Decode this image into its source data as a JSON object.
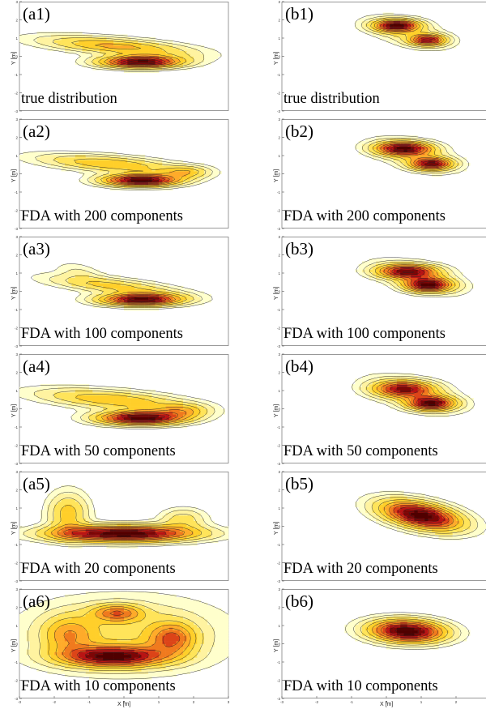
{
  "figure": {
    "ylabel": "Y [m]",
    "xlabel": "X [m]",
    "colormap": [
      "#ffffcc",
      "#fff3a0",
      "#ffe45a",
      "#ffcf2a",
      "#ffab2a",
      "#f07a1e",
      "#dc4418",
      "#b81414",
      "#7d0606",
      "#500000"
    ]
  },
  "chart_data": [
    {
      "type": "heatmap",
      "label": "(a1)",
      "caption": "true distribution",
      "xlim": [
        -3,
        3
      ],
      "ylim": [
        -3,
        3
      ],
      "blobs": [
        {
          "x": -0.2,
          "y": 0.55,
          "sx": 1.5,
          "sy": 0.3,
          "w": 0.45,
          "r": -0.15
        },
        {
          "x": 0.5,
          "y": -0.3,
          "sx": 0.8,
          "sy": 0.22,
          "w": 1.0,
          "r": 0.0
        }
      ]
    },
    {
      "type": "heatmap",
      "label": "(b1)",
      "caption": "true distribution",
      "xlim": [
        -3,
        3
      ],
      "ylim": [
        -3,
        3
      ],
      "blobs": [
        {
          "x": 0.3,
          "y": 1.7,
          "sx": 0.45,
          "sy": 0.22,
          "w": 1.0,
          "r": 0.0
        },
        {
          "x": 1.2,
          "y": 0.9,
          "sx": 0.35,
          "sy": 0.2,
          "w": 0.85,
          "r": 0.0
        },
        {
          "x": 0.6,
          "y": 1.3,
          "sx": 0.9,
          "sy": 0.45,
          "w": 0.25,
          "r": -0.5
        }
      ]
    },
    {
      "type": "heatmap",
      "label": "(a2)",
      "caption": "FDA with 200 components",
      "xlim": [
        -3,
        3
      ],
      "ylim": [
        -3,
        3
      ],
      "blobs": [
        {
          "x": -0.4,
          "y": 0.55,
          "sx": 1.4,
          "sy": 0.3,
          "w": 0.4,
          "r": -0.15
        },
        {
          "x": 0.5,
          "y": -0.35,
          "sx": 0.75,
          "sy": 0.22,
          "w": 1.0,
          "r": 0.0
        },
        {
          "x": 1.8,
          "y": 0.1,
          "sx": 0.45,
          "sy": 0.22,
          "w": 0.3,
          "r": 0.0
        }
      ]
    },
    {
      "type": "heatmap",
      "label": "(b2)",
      "caption": "FDA with 200 components",
      "xlim": [
        -3,
        3
      ],
      "ylim": [
        -3,
        3
      ],
      "blobs": [
        {
          "x": 0.5,
          "y": 1.4,
          "sx": 0.55,
          "sy": 0.25,
          "w": 1.0,
          "r": 0.0
        },
        {
          "x": 1.3,
          "y": 0.55,
          "sx": 0.4,
          "sy": 0.22,
          "w": 0.95,
          "r": 0.0
        },
        {
          "x": 0.8,
          "y": 1.0,
          "sx": 0.9,
          "sy": 0.45,
          "w": 0.3,
          "r": -0.5
        }
      ]
    },
    {
      "type": "heatmap",
      "label": "(a3)",
      "caption": "FDA with 100 components",
      "xlim": [
        -3,
        3
      ],
      "ylim": [
        -3,
        3
      ],
      "blobs": [
        {
          "x": -0.3,
          "y": 0.3,
          "sx": 1.3,
          "sy": 0.28,
          "w": 0.35,
          "r": -0.2
        },
        {
          "x": 0.5,
          "y": -0.45,
          "sx": 0.8,
          "sy": 0.22,
          "w": 1.0,
          "r": 0.0
        },
        {
          "x": -1.3,
          "y": 1.1,
          "sx": 0.5,
          "sy": 0.3,
          "w": 0.12,
          "r": -0.5
        }
      ]
    },
    {
      "type": "heatmap",
      "label": "(b3)",
      "caption": "FDA with 100 components",
      "xlim": [
        -3,
        3
      ],
      "ylim": [
        -3,
        3
      ],
      "blobs": [
        {
          "x": 0.6,
          "y": 1.1,
          "sx": 0.6,
          "sy": 0.25,
          "w": 0.85,
          "r": 0.0
        },
        {
          "x": 1.2,
          "y": 0.35,
          "sx": 0.45,
          "sy": 0.25,
          "w": 1.0,
          "r": 0.0
        },
        {
          "x": 0.9,
          "y": 0.8,
          "sx": 0.95,
          "sy": 0.45,
          "w": 0.3,
          "r": -0.5
        }
      ]
    },
    {
      "type": "heatmap",
      "label": "(a4)",
      "caption": "FDA with 50 components",
      "xlim": [
        -3,
        3
      ],
      "ylim": [
        -3,
        3
      ],
      "blobs": [
        {
          "x": -0.3,
          "y": 0.5,
          "sx": 1.5,
          "sy": 0.35,
          "w": 0.4,
          "r": -0.15
        },
        {
          "x": 0.5,
          "y": -0.5,
          "sx": 0.85,
          "sy": 0.25,
          "w": 1.0,
          "r": 0.0
        },
        {
          "x": 1.7,
          "y": -0.1,
          "sx": 0.5,
          "sy": 0.25,
          "w": 0.3,
          "r": 0.0
        }
      ]
    },
    {
      "type": "heatmap",
      "label": "(b4)",
      "caption": "FDA with 50 components",
      "xlim": [
        -3,
        3
      ],
      "ylim": [
        -3,
        3
      ],
      "blobs": [
        {
          "x": 0.5,
          "y": 1.1,
          "sx": 0.6,
          "sy": 0.3,
          "w": 0.8,
          "r": 0.0
        },
        {
          "x": 1.3,
          "y": 0.3,
          "sx": 0.45,
          "sy": 0.25,
          "w": 1.0,
          "r": 0.0
        },
        {
          "x": 0.8,
          "y": 0.8,
          "sx": 1.0,
          "sy": 0.5,
          "w": 0.3,
          "r": -0.5
        }
      ]
    },
    {
      "type": "heatmap",
      "label": "(a5)",
      "caption": "FDA with 20 components",
      "xlim": [
        -3,
        3
      ],
      "ylim": [
        -3,
        3
      ],
      "blobs": [
        {
          "x": 0.0,
          "y": -0.4,
          "sx": 1.4,
          "sy": 0.3,
          "w": 1.0,
          "r": 0.0
        },
        {
          "x": -1.6,
          "y": 0.7,
          "sx": 0.4,
          "sy": 0.8,
          "w": 0.35,
          "r": 0.0
        },
        {
          "x": 1.7,
          "y": 0.4,
          "sx": 0.45,
          "sy": 0.4,
          "w": 0.25,
          "r": 0.0
        }
      ]
    },
    {
      "type": "heatmap",
      "label": "(b5)",
      "caption": "FDA with 20 components",
      "xlim": [
        -3,
        3
      ],
      "ylim": [
        -3,
        3
      ],
      "blobs": [
        {
          "x": 1.0,
          "y": 0.6,
          "sx": 0.85,
          "sy": 0.45,
          "w": 1.0,
          "r": -0.45
        }
      ]
    },
    {
      "type": "heatmap",
      "label": "(a6)",
      "caption": "FDA with 10 components",
      "xlim": [
        -3,
        3
      ],
      "ylim": [
        -3,
        3
      ],
      "blobs": [
        {
          "x": -0.3,
          "y": -0.7,
          "sx": 1.0,
          "sy": 0.38,
          "w": 1.0,
          "r": 0.0
        },
        {
          "x": -0.2,
          "y": 1.7,
          "sx": 0.5,
          "sy": 0.32,
          "w": 0.55,
          "r": 0.0
        },
        {
          "x": 1.4,
          "y": 0.3,
          "sx": 0.45,
          "sy": 0.6,
          "w": 0.55,
          "r": 0.0
        },
        {
          "x": -1.6,
          "y": 0.5,
          "sx": 0.5,
          "sy": 0.7,
          "w": 0.4,
          "r": 0.0
        },
        {
          "x": 0.0,
          "y": 0.5,
          "sx": 2.0,
          "sy": 1.4,
          "w": 0.3,
          "r": 0.0
        }
      ]
    },
    {
      "type": "heatmap",
      "label": "(b6)",
      "caption": "FDA with 10 components",
      "xlim": [
        -3,
        3
      ],
      "ylim": [
        -3,
        3
      ],
      "blobs": [
        {
          "x": 0.6,
          "y": 0.7,
          "sx": 0.75,
          "sy": 0.42,
          "w": 1.0,
          "r": -0.1
        }
      ]
    }
  ]
}
